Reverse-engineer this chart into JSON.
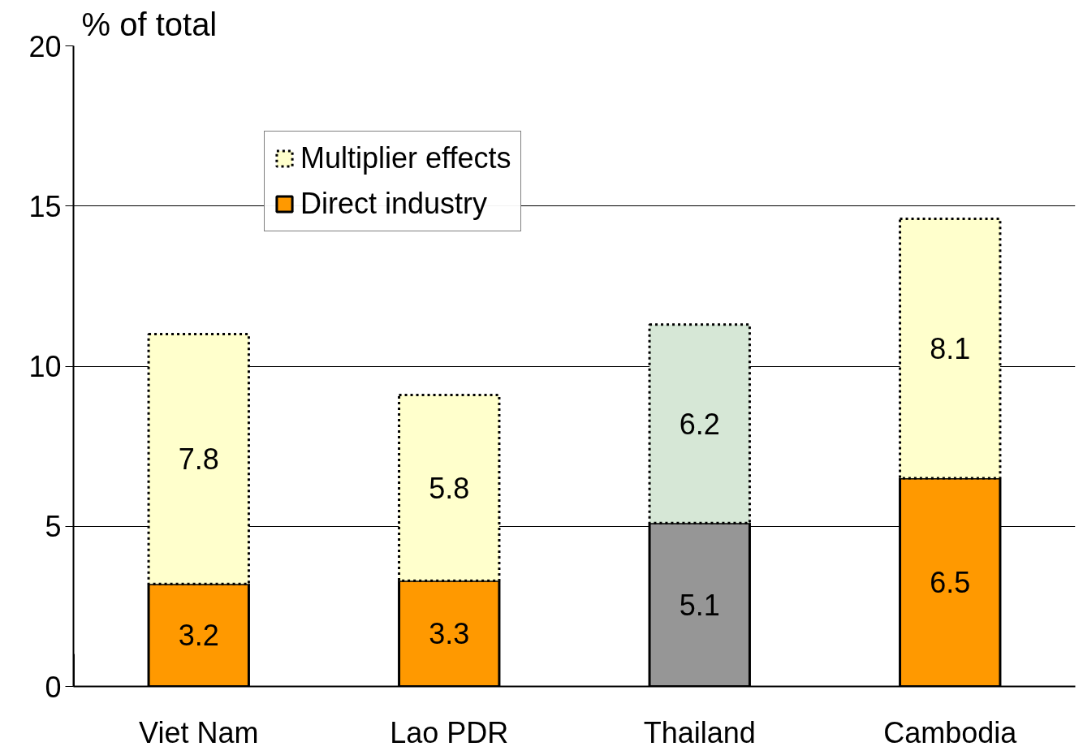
{
  "chart_data": {
    "type": "bar",
    "stacked": true,
    "ylabel": "% of total",
    "categories": [
      "Viet Nam",
      "Lao PDR",
      "Thailand",
      "Cambodia"
    ],
    "ylim": [
      0,
      20
    ],
    "yticks": [
      0,
      5,
      10,
      15,
      20
    ],
    "grid": "y",
    "legend": "top left",
    "data_labels": true,
    "series": [
      {
        "name": "Direct industry",
        "color": "#ff9900",
        "colors": [
          "#ff9900",
          "#ff9900",
          "#969696",
          "#ff9900"
        ],
        "line_style": "solid",
        "values": [
          3.2,
          3.3,
          5.1,
          6.5
        ]
      },
      {
        "name": "Multiplier effects",
        "color": "#ffffcc",
        "colors": [
          "#ffffcc",
          "#ffffcc",
          "#d6e7d6",
          "#ffffcc"
        ],
        "line_style": "dotted",
        "values": [
          7.8,
          5.8,
          6.2,
          8.1
        ]
      }
    ]
  }
}
